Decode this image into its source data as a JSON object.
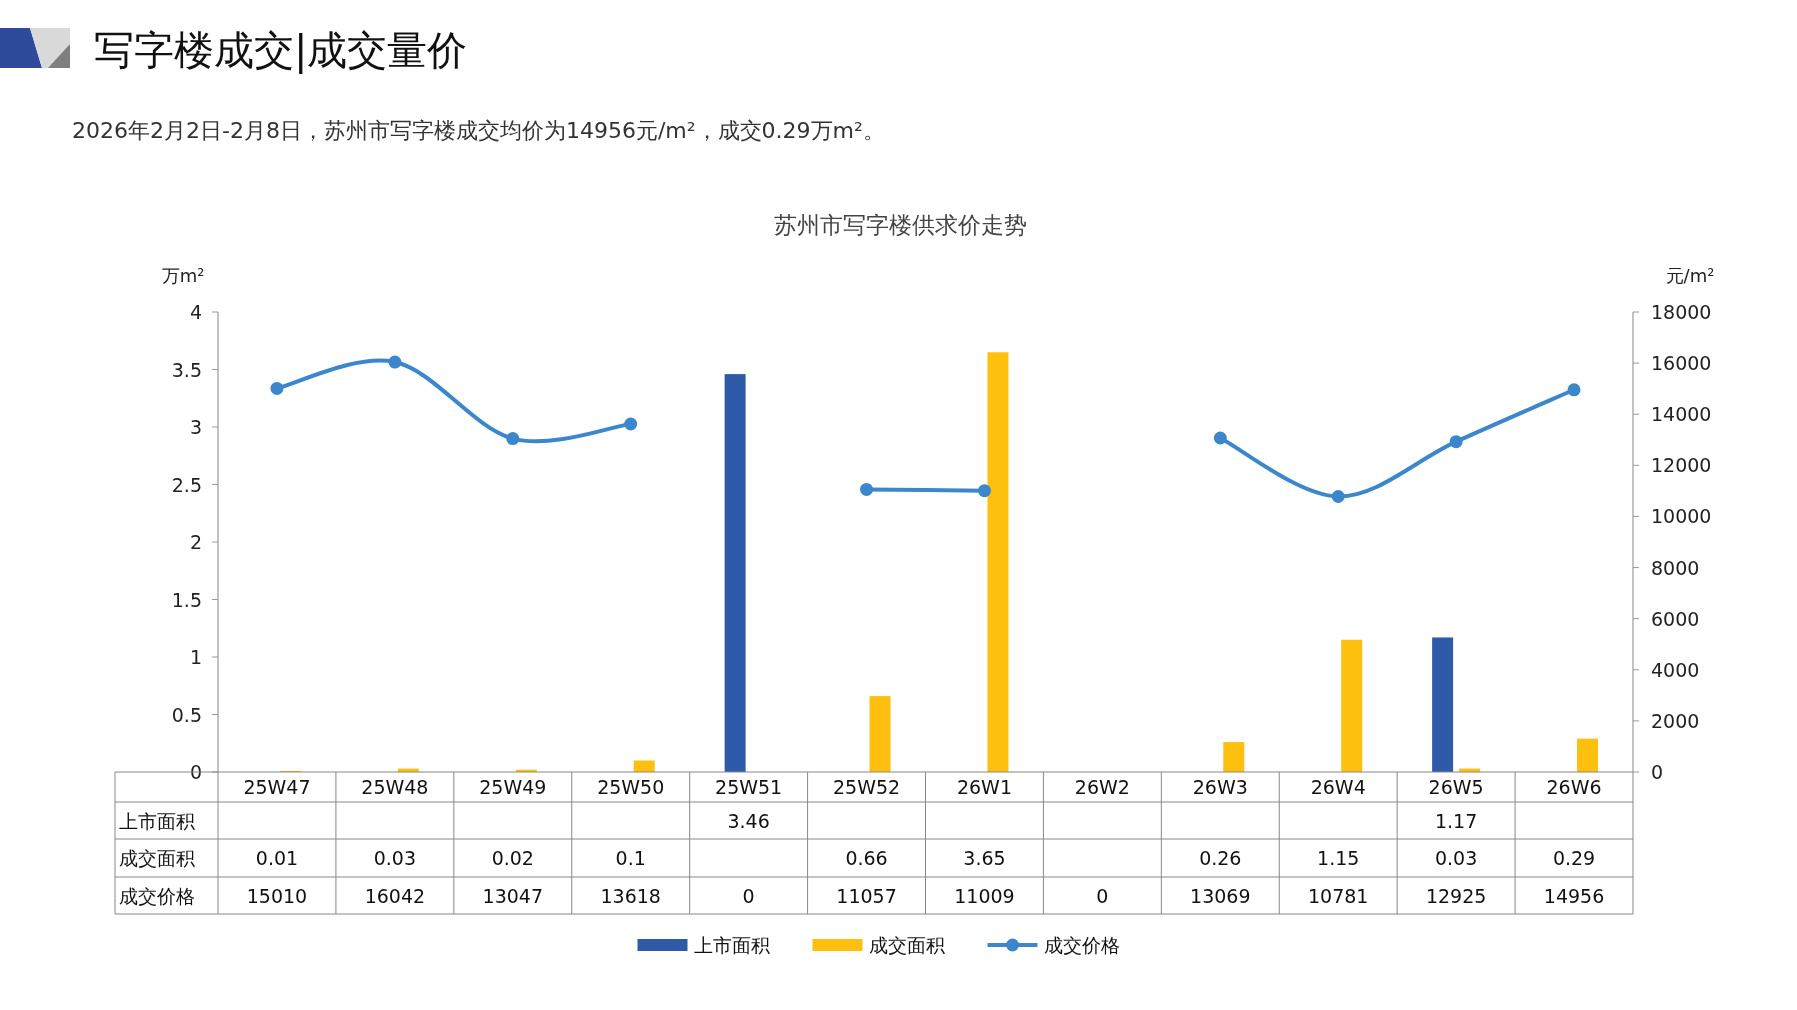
{
  "chart_data": {
    "type": "bar",
    "title": "写字楼成交|成交量价",
    "subtitle": "2026年2月2日-2月8日，苏州市写字楼成交均价为14956元/m²，成交0.29万m²。",
    "annotations": [
      "苏州市写字楼供求价走势"
    ],
    "ylabel": "万m²",
    "y2label": "元/m²",
    "categories": [
      "25W47",
      "25W48",
      "25W49",
      "25W50",
      "25W51",
      "25W52",
      "26W1",
      "26W2",
      "26W3",
      "26W4",
      "26W5",
      "26W6"
    ],
    "series": [
      {
        "name": "上市面积",
        "color": "#2f5aa8",
        "values": [
          null,
          null,
          null,
          null,
          3.46,
          null,
          null,
          null,
          null,
          null,
          1.17,
          null
        ]
      },
      {
        "name": "成交面积",
        "color": "#fdc00f",
        "values": [
          0.01,
          0.03,
          0.02,
          0.1,
          null,
          0.66,
          3.65,
          null,
          0.26,
          1.15,
          0.03,
          0.29
        ]
      },
      {
        "name": "成交价格",
        "type": "line",
        "axis": "y2",
        "color": "#3c87cc",
        "values": [
          15010,
          16042,
          13047,
          13618,
          null,
          11057,
          11009,
          null,
          13069,
          10781,
          12925,
          14956
        ],
        "value_labels": [
          "15010",
          "16042",
          "13047",
          "13618",
          "0",
          "11057",
          "11009",
          "0",
          "13069",
          "10781",
          "12925",
          "14956"
        ]
      }
    ],
    "ylim": [
      0,
      4
    ],
    "yticks": [
      0,
      0.5,
      1,
      1.5,
      2,
      2.5,
      3,
      3.5,
      4
    ],
    "y2lim": [
      0,
      18000
    ],
    "y2ticks": [
      0,
      2000,
      4000,
      6000,
      8000,
      10000,
      12000,
      14000,
      16000,
      18000
    ],
    "data_labels": true,
    "legend": "bottom",
    "marker": "circle"
  }
}
